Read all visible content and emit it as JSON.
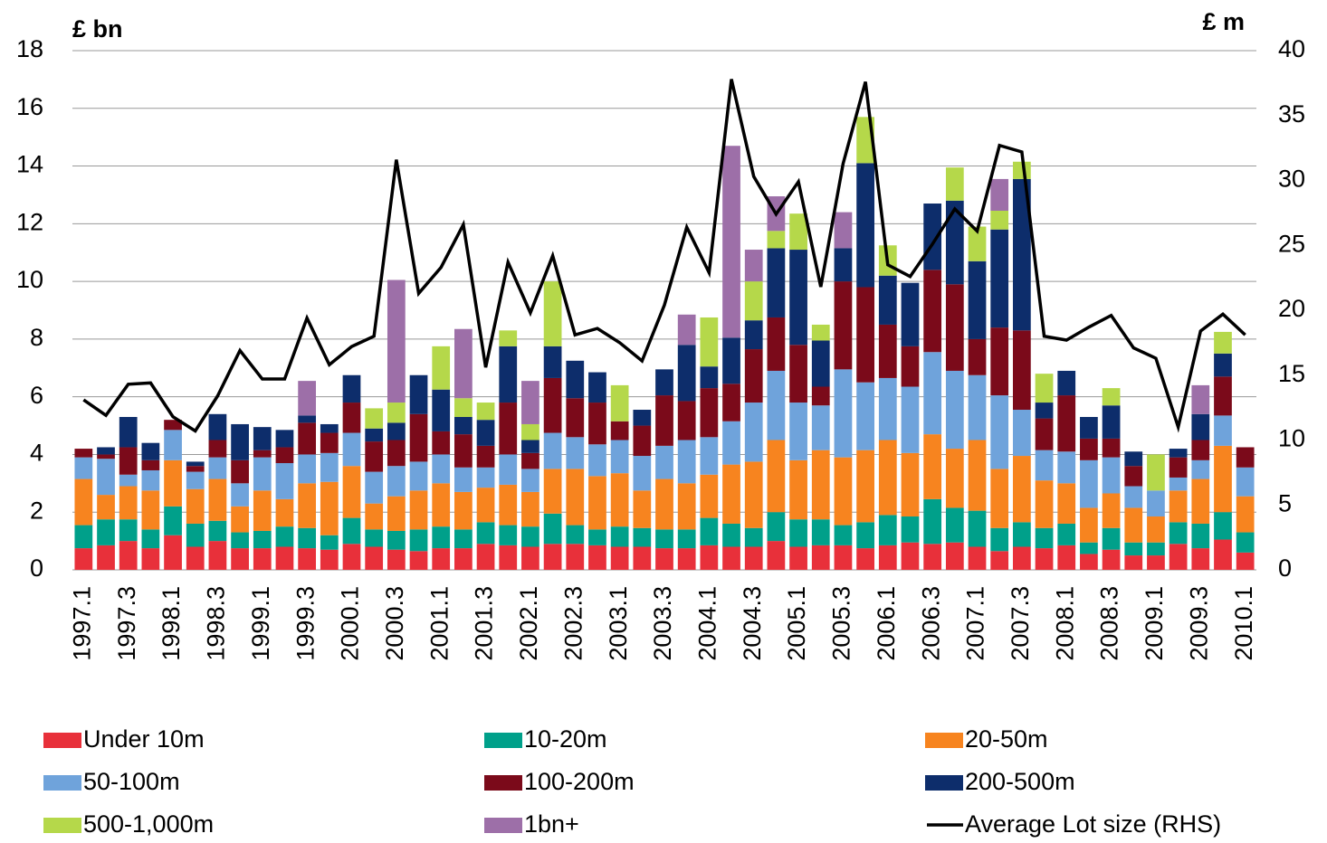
{
  "chart_data": {
    "type": "stacked-bar-line",
    "y_label": "£ bn",
    "y2_label": "£ m",
    "categories": [
      "1997.1",
      null,
      "1997.3",
      null,
      "1998.1",
      null,
      "1998.3",
      null,
      "1999.1",
      null,
      "1999.3",
      null,
      "2000.1",
      null,
      "2000.3",
      null,
      "2001.1",
      null,
      "2001.3",
      null,
      "2002.1",
      null,
      "2002.3",
      null,
      "2003.1",
      null,
      "2003.3",
      null,
      "2004.1",
      null,
      "2004.3",
      null,
      "2005.1",
      null,
      "2005.3",
      null,
      "2006.1",
      null,
      "2006.3",
      null,
      "2007.1",
      null,
      "2007.3",
      null,
      "2008.1",
      null,
      "2008.3",
      null,
      "2009.1",
      null,
      "2009.3",
      null,
      "2010.1"
    ],
    "ylim": [
      0,
      18
    ],
    "yticks": [
      0,
      2,
      4,
      6,
      8,
      10,
      12,
      14,
      16,
      18
    ],
    "y2lim": [
      0,
      40
    ],
    "y2ticks": [
      0,
      5,
      10,
      15,
      20,
      25,
      30,
      35,
      40
    ],
    "grid": true,
    "legend": "bottom",
    "series": [
      {
        "name": "Under 10m",
        "color": "#e8303a",
        "values": [
          0.75,
          0.85,
          1.0,
          0.75,
          1.2,
          0.8,
          1.0,
          0.75,
          0.75,
          0.8,
          0.75,
          0.7,
          0.9,
          0.8,
          0.7,
          0.65,
          0.75,
          0.75,
          0.9,
          0.85,
          0.8,
          0.9,
          0.9,
          0.85,
          0.8,
          0.8,
          0.75,
          0.75,
          0.85,
          0.8,
          0.8,
          1.0,
          0.8,
          0.85,
          0.85,
          0.75,
          0.85,
          0.95,
          0.9,
          0.95,
          0.8,
          0.65,
          0.8,
          0.75,
          0.85,
          0.55,
          0.7,
          0.5,
          0.5,
          0.9,
          0.75,
          1.05,
          0.6
        ]
      },
      {
        "name": "10-20m",
        "color": "#00a08a",
        "values": [
          0.8,
          0.9,
          0.75,
          0.65,
          1.0,
          0.8,
          0.7,
          0.55,
          0.6,
          0.7,
          0.7,
          0.5,
          0.9,
          0.6,
          0.65,
          0.75,
          0.75,
          0.65,
          0.75,
          0.7,
          0.7,
          1.05,
          0.65,
          0.55,
          0.7,
          0.65,
          0.65,
          0.65,
          0.95,
          0.8,
          0.65,
          1.0,
          0.95,
          0.9,
          0.7,
          0.9,
          1.05,
          0.9,
          1.55,
          1.2,
          1.25,
          0.8,
          0.85,
          0.7,
          0.75,
          0.4,
          0.75,
          0.45,
          0.45,
          0.75,
          0.85,
          0.95,
          0.7
        ]
      },
      {
        "name": "20-50m",
        "color": "#f7841f",
        "values": [
          1.6,
          0.85,
          1.15,
          1.35,
          1.6,
          1.2,
          1.45,
          0.9,
          1.4,
          0.95,
          1.55,
          1.85,
          1.8,
          0.9,
          1.2,
          1.35,
          1.5,
          1.3,
          1.2,
          1.4,
          1.2,
          1.55,
          1.95,
          1.85,
          1.85,
          1.3,
          1.75,
          1.6,
          1.5,
          2.05,
          2.3,
          2.5,
          2.05,
          2.4,
          2.35,
          2.5,
          2.6,
          2.2,
          2.25,
          2.05,
          2.45,
          2.05,
          2.3,
          1.65,
          1.4,
          1.2,
          1.2,
          1.2,
          0.9,
          1.1,
          1.55,
          2.3,
          1.25
        ]
      },
      {
        "name": "50-100m",
        "color": "#6fa3db",
        "values": [
          0.75,
          1.25,
          0.4,
          0.7,
          1.05,
          0.6,
          0.75,
          0.8,
          1.15,
          1.25,
          1.0,
          1.0,
          1.15,
          1.1,
          1.05,
          1.0,
          1.0,
          0.85,
          0.7,
          1.05,
          0.8,
          1.25,
          1.1,
          1.1,
          1.15,
          1.2,
          1.15,
          1.5,
          1.3,
          1.5,
          2.05,
          2.4,
          2.0,
          1.55,
          3.05,
          2.35,
          2.15,
          2.3,
          2.85,
          2.7,
          2.25,
          2.55,
          1.6,
          1.05,
          1.1,
          1.65,
          1.25,
          0.75,
          0.9,
          0.45,
          0.65,
          1.05,
          1.0
        ]
      },
      {
        "name": "100-200m",
        "color": "#7b0a1a",
        "values": [
          0.3,
          0.15,
          0.95,
          0.35,
          0.35,
          0.2,
          0.6,
          0.8,
          0.25,
          0.55,
          1.1,
          0.7,
          1.05,
          1.05,
          0.9,
          1.65,
          0.8,
          1.15,
          0.75,
          1.8,
          0.55,
          1.9,
          1.35,
          1.45,
          0.65,
          1.05,
          1.75,
          1.35,
          1.7,
          1.3,
          1.85,
          1.85,
          2.0,
          0.65,
          3.05,
          3.3,
          1.85,
          1.4,
          2.85,
          3.0,
          1.25,
          2.35,
          2.75,
          1.1,
          1.95,
          0.75,
          0.65,
          0.7,
          0,
          0.7,
          0.7,
          1.35,
          0.7
        ]
      },
      {
        "name": "200-500m",
        "color": "#0d2d6b",
        "values": [
          0,
          0.25,
          1.05,
          0.6,
          0,
          0.15,
          0.9,
          1.25,
          0.8,
          0.6,
          0.25,
          0.3,
          0.95,
          0.45,
          0.6,
          1.35,
          1.45,
          0.6,
          0.9,
          1.95,
          0.45,
          1.1,
          1.3,
          1.05,
          0,
          0.55,
          0.9,
          1.95,
          0.75,
          1.6,
          1.0,
          2.4,
          3.3,
          1.6,
          1.15,
          4.3,
          1.7,
          2.2,
          2.3,
          2.9,
          2.7,
          3.4,
          5.25,
          0.55,
          0.85,
          0.75,
          1.15,
          0.5,
          0,
          0.3,
          0.9,
          0.8,
          0
        ]
      },
      {
        "name": "500-1,000m",
        "color": "#b5d84a",
        "values": [
          0,
          0,
          0,
          0,
          0,
          0,
          0,
          0,
          0,
          0,
          0,
          0,
          0,
          0.7,
          0.7,
          0,
          1.5,
          0.65,
          0.6,
          0.55,
          0.55,
          2.25,
          0,
          0,
          1.25,
          0,
          0,
          0,
          1.7,
          0,
          1.35,
          0.6,
          1.25,
          0.55,
          0,
          1.6,
          1.05,
          0,
          0,
          1.15,
          1.2,
          0.65,
          0.6,
          1.0,
          0,
          0,
          0.6,
          0,
          1.25,
          0,
          0,
          0.75,
          0
        ]
      },
      {
        "name": "1bn+",
        "color": "#9d6fa8",
        "values": [
          0,
          0,
          0,
          0,
          0,
          0,
          0,
          0,
          0,
          0,
          1.2,
          0,
          0,
          0,
          4.25,
          0,
          0,
          2.4,
          0,
          0,
          1.5,
          0,
          0,
          0,
          0,
          0,
          0,
          1.05,
          0,
          6.65,
          1.1,
          1.2,
          0,
          0,
          1.25,
          0,
          0,
          0,
          0,
          0,
          0,
          1.1,
          0,
          0,
          0,
          0,
          0,
          0,
          0,
          0,
          1.0,
          0,
          0
        ]
      },
      {
        "name": "Average Lot size (RHS)",
        "color": "#000000",
        "axis": "y2",
        "type": "line",
        "values": [
          13.1,
          11.9,
          14.3,
          14.4,
          11.8,
          10.7,
          13.4,
          16.9,
          14.7,
          14.7,
          19.4,
          15.8,
          17.2,
          18.0,
          31.6,
          21.3,
          23.3,
          26.6,
          15.6,
          23.7,
          19.8,
          24.2,
          18.1,
          18.6,
          17.5,
          16.1,
          20.4,
          26.4,
          22.9,
          37.8,
          30.3,
          27.4,
          29.9,
          21.8,
          31.3,
          37.6,
          23.5,
          22.6,
          25.1,
          27.8,
          26.1,
          32.7,
          32.2,
          18.0,
          17.7,
          18.7,
          19.6,
          17.1,
          16.3,
          11.0,
          18.4,
          19.7,
          18.1
        ]
      }
    ]
  }
}
